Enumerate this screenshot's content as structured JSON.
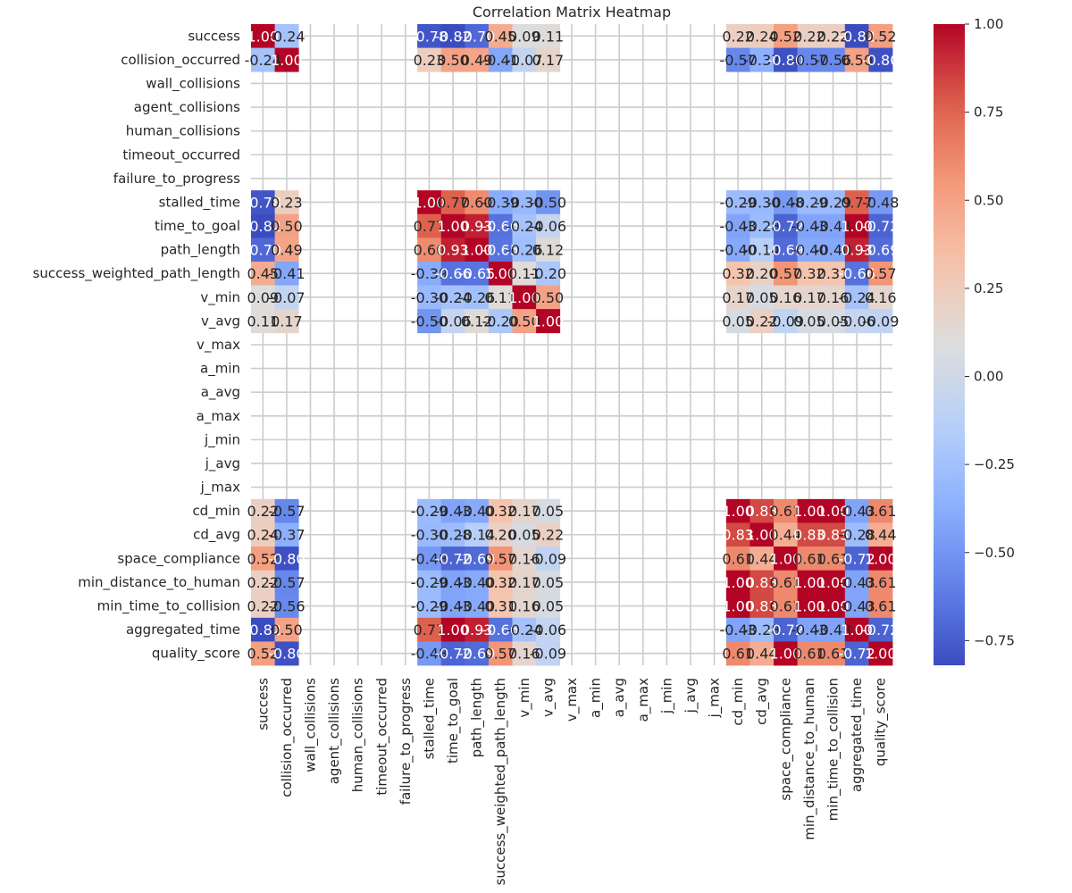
{
  "chart_data": {
    "type": "heatmap",
    "title": "Correlation Matrix Heatmap",
    "labels": [
      "success",
      "collision_occurred",
      "wall_collisions",
      "agent_collisions",
      "human_collisions",
      "timeout_occurred",
      "failure_to_progress",
      "stalled_time",
      "time_to_goal",
      "path_length",
      "success_weighted_path_length",
      "v_min",
      "v_avg",
      "v_max",
      "a_min",
      "a_avg",
      "a_max",
      "j_min",
      "j_avg",
      "j_max",
      "cd_min",
      "cd_avg",
      "space_compliance",
      "min_distance_to_human",
      "min_time_to_collision",
      "aggregated_time",
      "quality_score"
    ],
    "matrix": [
      [
        1.0,
        -0.24,
        null,
        null,
        null,
        null,
        null,
        -0.78,
        -0.82,
        -0.7,
        0.45,
        0.09,
        0.11,
        null,
        null,
        null,
        null,
        null,
        null,
        null,
        0.22,
        0.24,
        0.52,
        0.22,
        0.22,
        -0.82,
        0.52
      ],
      [
        -0.24,
        1.0,
        null,
        null,
        null,
        null,
        null,
        0.23,
        0.5,
        0.49,
        -0.41,
        -0.07,
        0.17,
        null,
        null,
        null,
        null,
        null,
        null,
        null,
        -0.57,
        -0.37,
        -0.8,
        -0.57,
        -0.56,
        0.5,
        -0.8
      ],
      [
        null,
        null,
        null,
        null,
        null,
        null,
        null,
        null,
        null,
        null,
        null,
        null,
        null,
        null,
        null,
        null,
        null,
        null,
        null,
        null,
        null,
        null,
        null,
        null,
        null,
        null,
        null
      ],
      [
        null,
        null,
        null,
        null,
        null,
        null,
        null,
        null,
        null,
        null,
        null,
        null,
        null,
        null,
        null,
        null,
        null,
        null,
        null,
        null,
        null,
        null,
        null,
        null,
        null,
        null,
        null
      ],
      [
        null,
        null,
        null,
        null,
        null,
        null,
        null,
        null,
        null,
        null,
        null,
        null,
        null,
        null,
        null,
        null,
        null,
        null,
        null,
        null,
        null,
        null,
        null,
        null,
        null,
        null,
        null
      ],
      [
        null,
        null,
        null,
        null,
        null,
        null,
        null,
        null,
        null,
        null,
        null,
        null,
        null,
        null,
        null,
        null,
        null,
        null,
        null,
        null,
        null,
        null,
        null,
        null,
        null,
        null,
        null
      ],
      [
        null,
        null,
        null,
        null,
        null,
        null,
        null,
        null,
        null,
        null,
        null,
        null,
        null,
        null,
        null,
        null,
        null,
        null,
        null,
        null,
        null,
        null,
        null,
        null,
        null,
        null,
        null
      ],
      [
        -0.78,
        0.23,
        null,
        null,
        null,
        null,
        null,
        1.0,
        0.77,
        0.6,
        -0.39,
        -0.3,
        -0.5,
        null,
        null,
        null,
        null,
        null,
        null,
        null,
        -0.29,
        -0.3,
        -0.48,
        -0.29,
        -0.29,
        0.77,
        -0.48
      ],
      [
        -0.82,
        0.5,
        null,
        null,
        null,
        null,
        null,
        0.77,
        1.0,
        0.93,
        -0.66,
        -0.24,
        -0.06,
        null,
        null,
        null,
        null,
        null,
        null,
        null,
        -0.43,
        -0.28,
        -0.72,
        -0.43,
        -0.43,
        1.0,
        -0.72
      ],
      [
        -0.7,
        0.49,
        null,
        null,
        null,
        null,
        null,
        0.6,
        0.93,
        1.0,
        -0.65,
        -0.26,
        0.12,
        null,
        null,
        null,
        null,
        null,
        null,
        null,
        -0.4,
        -0.14,
        -0.69,
        -0.4,
        -0.4,
        0.93,
        -0.69
      ],
      [
        0.45,
        -0.41,
        null,
        null,
        null,
        null,
        null,
        -0.39,
        -0.66,
        -0.65,
        1.0,
        0.11,
        -0.2,
        null,
        null,
        null,
        null,
        null,
        null,
        null,
        0.32,
        0.2,
        0.57,
        0.32,
        0.31,
        -0.66,
        0.57
      ],
      [
        0.09,
        -0.07,
        null,
        null,
        null,
        null,
        null,
        -0.3,
        -0.24,
        -0.26,
        0.11,
        1.0,
        0.5,
        null,
        null,
        null,
        null,
        null,
        null,
        null,
        0.17,
        0.05,
        0.16,
        0.17,
        0.16,
        -0.24,
        0.16
      ],
      [
        0.11,
        0.17,
        null,
        null,
        null,
        null,
        null,
        -0.5,
        -0.06,
        0.12,
        -0.2,
        0.5,
        1.0,
        null,
        null,
        null,
        null,
        null,
        null,
        null,
        0.05,
        0.22,
        -0.09,
        0.05,
        0.05,
        -0.06,
        -0.09
      ],
      [
        null,
        null,
        null,
        null,
        null,
        null,
        null,
        null,
        null,
        null,
        null,
        null,
        null,
        null,
        null,
        null,
        null,
        null,
        null,
        null,
        null,
        null,
        null,
        null,
        null,
        null,
        null
      ],
      [
        null,
        null,
        null,
        null,
        null,
        null,
        null,
        null,
        null,
        null,
        null,
        null,
        null,
        null,
        null,
        null,
        null,
        null,
        null,
        null,
        null,
        null,
        null,
        null,
        null,
        null,
        null
      ],
      [
        null,
        null,
        null,
        null,
        null,
        null,
        null,
        null,
        null,
        null,
        null,
        null,
        null,
        null,
        null,
        null,
        null,
        null,
        null,
        null,
        null,
        null,
        null,
        null,
        null,
        null,
        null
      ],
      [
        null,
        null,
        null,
        null,
        null,
        null,
        null,
        null,
        null,
        null,
        null,
        null,
        null,
        null,
        null,
        null,
        null,
        null,
        null,
        null,
        null,
        null,
        null,
        null,
        null,
        null,
        null
      ],
      [
        null,
        null,
        null,
        null,
        null,
        null,
        null,
        null,
        null,
        null,
        null,
        null,
        null,
        null,
        null,
        null,
        null,
        null,
        null,
        null,
        null,
        null,
        null,
        null,
        null,
        null,
        null
      ],
      [
        null,
        null,
        null,
        null,
        null,
        null,
        null,
        null,
        null,
        null,
        null,
        null,
        null,
        null,
        null,
        null,
        null,
        null,
        null,
        null,
        null,
        null,
        null,
        null,
        null,
        null,
        null
      ],
      [
        null,
        null,
        null,
        null,
        null,
        null,
        null,
        null,
        null,
        null,
        null,
        null,
        null,
        null,
        null,
        null,
        null,
        null,
        null,
        null,
        null,
        null,
        null,
        null,
        null,
        null,
        null
      ],
      [
        0.22,
        -0.57,
        null,
        null,
        null,
        null,
        null,
        -0.29,
        -0.43,
        -0.4,
        0.32,
        0.17,
        0.05,
        null,
        null,
        null,
        null,
        null,
        null,
        null,
        1.0,
        0.83,
        0.61,
        1.0,
        1.0,
        -0.43,
        0.61
      ],
      [
        0.24,
        -0.37,
        null,
        null,
        null,
        null,
        null,
        -0.3,
        -0.28,
        -0.14,
        0.2,
        0.05,
        0.22,
        null,
        null,
        null,
        null,
        null,
        null,
        null,
        0.83,
        1.0,
        0.44,
        0.83,
        0.83,
        -0.28,
        0.44
      ],
      [
        0.52,
        -0.8,
        null,
        null,
        null,
        null,
        null,
        -0.48,
        -0.72,
        -0.69,
        0.57,
        0.16,
        -0.09,
        null,
        null,
        null,
        null,
        null,
        null,
        null,
        0.61,
        0.44,
        1.0,
        0.61,
        0.61,
        -0.72,
        1.0
      ],
      [
        0.22,
        -0.57,
        null,
        null,
        null,
        null,
        null,
        -0.29,
        -0.43,
        -0.4,
        0.32,
        0.17,
        0.05,
        null,
        null,
        null,
        null,
        null,
        null,
        null,
        1.0,
        0.83,
        0.61,
        1.0,
        1.0,
        -0.43,
        0.61
      ],
      [
        0.22,
        -0.56,
        null,
        null,
        null,
        null,
        null,
        -0.29,
        -0.43,
        -0.4,
        0.31,
        0.16,
        0.05,
        null,
        null,
        null,
        null,
        null,
        null,
        null,
        1.0,
        0.83,
        0.61,
        1.0,
        1.0,
        -0.43,
        0.61
      ],
      [
        -0.82,
        0.5,
        null,
        null,
        null,
        null,
        null,
        0.77,
        1.0,
        0.93,
        -0.66,
        -0.24,
        -0.06,
        null,
        null,
        null,
        null,
        null,
        null,
        null,
        -0.43,
        -0.28,
        -0.72,
        -0.43,
        -0.43,
        1.0,
        -0.72
      ],
      [
        0.52,
        -0.8,
        null,
        null,
        null,
        null,
        null,
        -0.48,
        -0.72,
        -0.69,
        0.57,
        0.16,
        -0.09,
        null,
        null,
        null,
        null,
        null,
        null,
        null,
        0.61,
        0.44,
        1.0,
        0.61,
        0.61,
        -0.72,
        1.0
      ]
    ],
    "colormap": "coolwarm",
    "colorbar": {
      "range": [
        -0.82,
        1.0
      ],
      "ticks": [
        "1.00",
        "0.75",
        "0.50",
        "0.25",
        "0.00",
        "−0.25",
        "−0.50",
        "−0.75"
      ],
      "tick_values": [
        1.0,
        0.75,
        0.5,
        0.25,
        0.0,
        -0.25,
        -0.5,
        -0.75
      ]
    },
    "grid": true,
    "grid_color": "#cccccc"
  }
}
